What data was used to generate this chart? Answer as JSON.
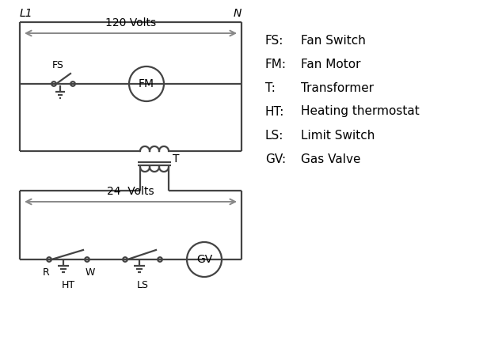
{
  "bg_color": "#ffffff",
  "line_color": "#444444",
  "text_color": "#000000",
  "gray_arrow": "#888888",
  "legend_items": [
    [
      "FS:",
      "Fan Switch"
    ],
    [
      "FM:",
      "Fan Motor"
    ],
    [
      "T:",
      "Transformer"
    ],
    [
      "HT:",
      "Heating thermostat"
    ],
    [
      "LS:",
      "Limit Switch"
    ],
    [
      "GV:",
      "Gas Valve"
    ]
  ],
  "L1_label": "L1",
  "N_label": "N",
  "volts120_label": "120 Volts",
  "volts24_label": "24  Volts",
  "T_label": "T",
  "R_label": "R",
  "W_label": "W",
  "HT_label": "HT",
  "LS_label": "LS",
  "FS_label": "FS",
  "FM_label": "FM",
  "GV_label": "GV"
}
